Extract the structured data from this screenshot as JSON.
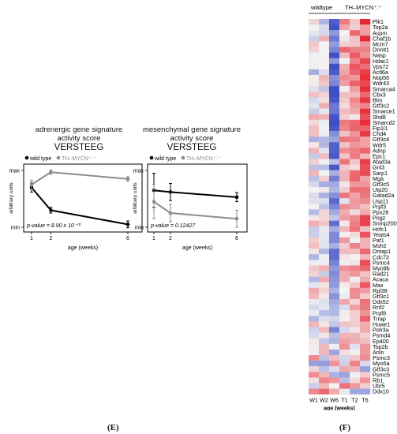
{
  "panel_labels": {
    "E": "(E)",
    "F": "(F)"
  },
  "chart_data": [
    {
      "type": "line",
      "title_line1": "adrenergic gene signature",
      "title_line2": "activity score",
      "title_line3": "VERSTEEG",
      "xlabel": "age (weeks)",
      "ylabel": "arbitrary units",
      "x": [
        1,
        2,
        6
      ],
      "x_ticks": [
        "1",
        "2",
        "6"
      ],
      "y_ticks": [
        "min",
        "max"
      ],
      "ylim": [
        0,
        1
      ],
      "legend": [
        "wild type",
        "TH–MYCN⁺˸⁺"
      ],
      "legend_placement": "top",
      "annotation": "p-value = 8.90 x 10⁻⁰⁷",
      "series": [
        {
          "name": "wild type",
          "color": "#000000",
          "values": [
            0.7,
            0.3,
            0.05
          ],
          "errors": [
            0.08,
            0.05,
            0.06
          ]
        },
        {
          "name": "TH–MYCN⁺˸⁺",
          "color": "#8c8c8c",
          "values": [
            0.75,
            0.97,
            0.85
          ],
          "errors": [
            0.08,
            0.04,
            0.04
          ]
        }
      ]
    },
    {
      "type": "line",
      "title_line1": "mesenchymal gene signature",
      "title_line2": "activity score",
      "title_line3": "VERSTEEG",
      "xlabel": "age (weeks)",
      "ylabel": "arbitrary units",
      "x": [
        1,
        2,
        6
      ],
      "x_ticks": [
        "1",
        "2",
        "6"
      ],
      "y_ticks": [
        "min",
        "max"
      ],
      "ylim": [
        0,
        1
      ],
      "legend": [
        "wild type",
        "TH–MYCN⁺˸⁺"
      ],
      "legend_placement": "top",
      "annotation": "p-value = 0.12427",
      "series": [
        {
          "name": "wild type",
          "color": "#000000",
          "values": [
            0.65,
            0.62,
            0.53
          ],
          "errors": [
            0.3,
            0.15,
            0.08
          ]
        },
        {
          "name": "TH–MYCN⁺˸⁺",
          "color": "#8c8c8c",
          "values": [
            0.45,
            0.25,
            0.15
          ],
          "errors": [
            0.3,
            0.15,
            0.15
          ]
        }
      ]
    },
    {
      "type": "heatmap",
      "group_labels": [
        "wildtype",
        "TH–MYCN⁺˸⁺"
      ],
      "columns": [
        "W1",
        "W2",
        "W6",
        "T1",
        "T2",
        "T6"
      ],
      "xlabel": "age (weeks)",
      "color_scale": {
        "low": "#3f4fc4",
        "mid": "#f4f4f4",
        "high": "#e8202c"
      },
      "rows": [
        "Plk1",
        "Top2a",
        "Aspm",
        "Chaf1b",
        "Mcm7",
        "Dnmt1",
        "Nasp",
        "Hdac1",
        "Vps72",
        "Actl6a",
        "Nop56",
        "Wdr43",
        "Smarca4",
        "Cbx3",
        "Blm",
        "Gtf3c2",
        "Smarce1",
        "Shd8",
        "Smarcd2",
        "Fip1l1",
        "Chd4",
        "Gtf3c4",
        "Wdr5",
        "Adnp",
        "Epc1",
        "Atad3a",
        "Gnl3",
        "Sarp1",
        "Mga",
        "Gtf3c5",
        "Utp20",
        "Gatad2a",
        "Usp11",
        "Prpf3",
        "Pps28",
        "Pogz",
        "Snmp200",
        "Hcfc1",
        "Yeats4",
        "Paf1",
        "Msh2",
        "Dmap1",
        "Cdc73",
        "Psmc4",
        "Myo9b",
        "Rad21",
        "Acaca",
        "Max",
        "Rpl38",
        "Gtf3c1",
        "Ddx52",
        "Rnf2",
        "Prpf8",
        "Trrap",
        "Huwe1",
        "Polr3a",
        "Psmd4",
        "Ep400",
        "Top2b",
        "Anln",
        "Psmc3",
        "Myo5a",
        "Gtf3c3",
        "Psmc5",
        "Rb1",
        "Ubr5",
        "Ddx10"
      ]
    }
  ]
}
